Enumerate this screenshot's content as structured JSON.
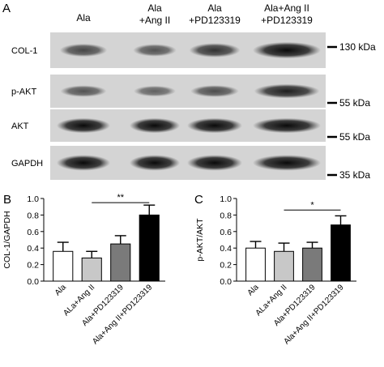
{
  "panel_a": {
    "letter": "A",
    "lanes": [
      {
        "line1": "Ala",
        "line2": ""
      },
      {
        "line1": "Ala",
        "line2": "+Ang II"
      },
      {
        "line1": "Ala",
        "line2": "+PD123319"
      },
      {
        "line1": "Ala+Ang II",
        "line2": "+PD123319"
      }
    ],
    "blots": [
      {
        "label": "COL-1",
        "marker": "130 kDa",
        "intensities": [
          0.55,
          0.45,
          0.7,
          1.0
        ]
      },
      {
        "label": "p-AKT",
        "marker": "55 kDa",
        "intensities": [
          0.45,
          0.35,
          0.5,
          0.85
        ]
      },
      {
        "label": "AKT",
        "marker": "55 kDa",
        "intensities": [
          1.0,
          1.0,
          1.0,
          1.0
        ]
      },
      {
        "label": "GAPDH",
        "marker": "35 kDa",
        "intensities": [
          1.0,
          1.0,
          1.0,
          1.0
        ]
      }
    ]
  },
  "colors": {
    "bar_fills": [
      "#ffffff",
      "#c8c8c8",
      "#7a7a7a",
      "#000000"
    ],
    "bar_stroke": "#000000"
  },
  "chart_data": [
    {
      "letter": "B",
      "type": "bar",
      "ylabel": "COL-1/GAPDH",
      "ylim": [
        0,
        1.0
      ],
      "yticks": [
        "0.0",
        "0.2",
        "0.4",
        "0.6",
        "0.8",
        "1.0"
      ],
      "categories": [
        "Ala",
        "ALa+Ang II",
        "Ala+PD123319",
        "Ala+Ang II+PD123319"
      ],
      "values": [
        0.36,
        0.28,
        0.45,
        0.8
      ],
      "errors": [
        0.11,
        0.08,
        0.1,
        0.12
      ],
      "significance": {
        "from": 1,
        "to": 3,
        "label": "**",
        "y": 0.95
      }
    },
    {
      "letter": "C",
      "type": "bar",
      "ylabel": "p-AKT/AKT",
      "ylim": [
        0,
        1.0
      ],
      "yticks": [
        "0.0",
        "0.2",
        "0.4",
        "0.6",
        "0.8",
        "1.0"
      ],
      "categories": [
        "Ala",
        "ALa+Ang II",
        "Ala+PD123319",
        "Ala+Ang II+PD123319"
      ],
      "values": [
        0.4,
        0.36,
        0.4,
        0.68
      ],
      "errors": [
        0.08,
        0.1,
        0.07,
        0.11
      ],
      "significance": {
        "from": 1,
        "to": 3,
        "label": "*",
        "y": 0.86
      }
    }
  ]
}
